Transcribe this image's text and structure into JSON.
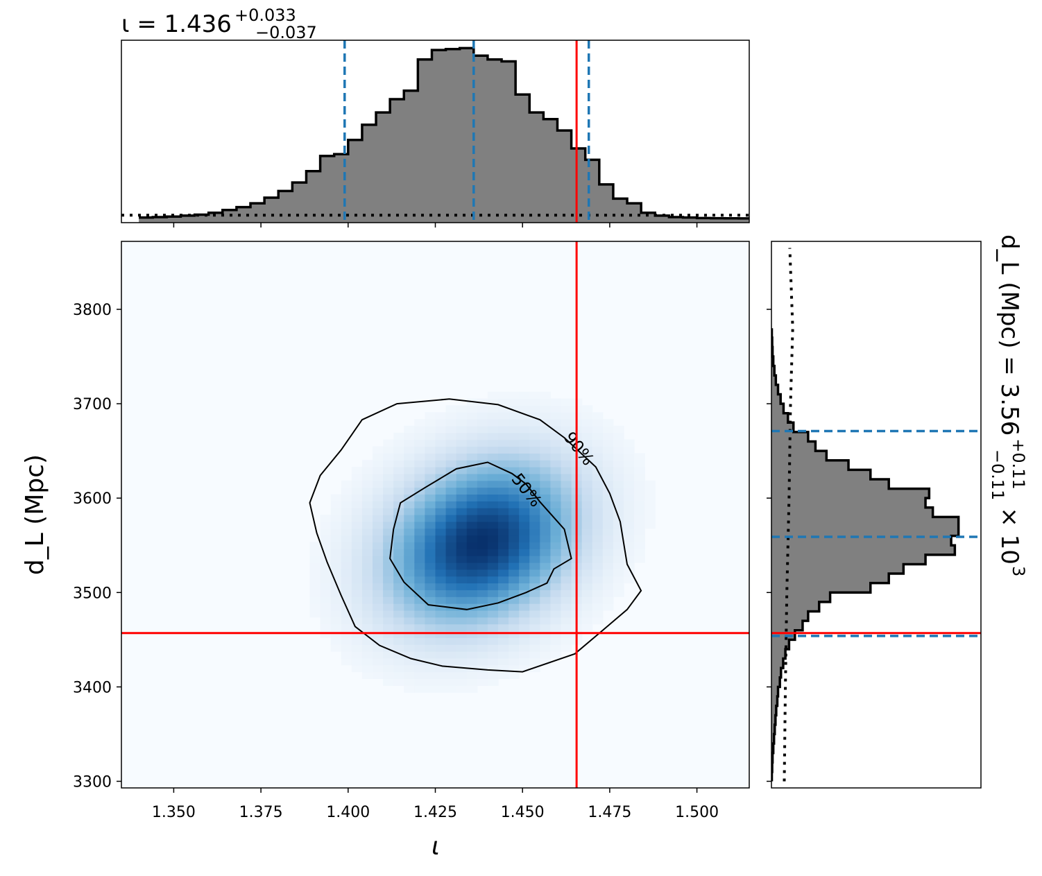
{
  "colors": {
    "truth": "#ff0000",
    "quantile": "#1f77b4",
    "hist_fill": "#808080",
    "hist_edge": "#000000",
    "density_low": "#f7fbff",
    "density_high": "#08306b"
  },
  "chart_data": [
    {
      "type": "histogram",
      "panel": "top-marginal",
      "title_main": "ι = 1.436",
      "title_plus": "+0.033",
      "title_minus": "−0.037",
      "xlim": [
        1.335,
        1.515
      ],
      "bin_start": 1.34,
      "bin_width": 0.004,
      "counts": [
        0.1,
        0.15,
        0.2,
        0.3,
        0.4,
        0.6,
        0.9,
        1.2,
        1.6,
        2.2,
        2.9,
        3.8,
        5.0,
        6.6,
        6.8,
        8.3,
        9.9,
        11.2,
        12.6,
        13.5,
        16.8,
        17.8,
        17.9,
        18.0,
        17.2,
        16.8,
        16.6,
        13.1,
        11.2,
        10.5,
        9.3,
        7.4,
        6.2,
        3.6,
        2.1,
        1.6,
        0.6,
        0.3,
        0.15,
        0.1,
        0.05,
        0.03,
        0.02,
        0.01
      ],
      "prior_level": 0.35,
      "median": 1.436,
      "lower": 1.399,
      "upper": 1.469,
      "truth": 1.4655
    },
    {
      "type": "heatmap",
      "panel": "joint",
      "xlabel": "ι",
      "ylabel": "d_L (Mpc)",
      "xlim": [
        1.335,
        1.515
      ],
      "ylim": [
        3293,
        3872
      ],
      "xticks": [
        "1.350",
        "1.375",
        "1.400",
        "1.425",
        "1.450",
        "1.475",
        "1.500"
      ],
      "xtick_values": [
        1.35,
        1.375,
        1.4,
        1.425,
        1.45,
        1.475,
        1.5
      ],
      "yticks": [
        "3300",
        "3400",
        "3500",
        "3600",
        "3700",
        "3800"
      ],
      "ytick_values": [
        3300,
        3400,
        3500,
        3600,
        3700,
        3800
      ],
      "peak": [
        1.438,
        3553
      ],
      "sigma": [
        0.017,
        55
      ],
      "truth": [
        1.4655,
        3457
      ],
      "contour_labels": [
        "50%",
        "90%"
      ],
      "contour_50": [
        [
          1.413,
          3567
        ],
        [
          1.415,
          3595
        ],
        [
          1.422,
          3611
        ],
        [
          1.431,
          3631
        ],
        [
          1.44,
          3638
        ],
        [
          1.447,
          3626
        ],
        [
          1.451,
          3615
        ],
        [
          1.455,
          3596
        ],
        [
          1.462,
          3567
        ],
        [
          1.464,
          3536
        ],
        [
          1.459,
          3525
        ],
        [
          1.457,
          3510
        ],
        [
          1.451,
          3500
        ],
        [
          1.443,
          3489
        ],
        [
          1.434,
          3482
        ],
        [
          1.423,
          3487
        ],
        [
          1.416,
          3511
        ],
        [
          1.412,
          3536
        ],
        [
          1.413,
          3567
        ]
      ],
      "contour_90": [
        [
          1.389,
          3595
        ],
        [
          1.392,
          3624
        ],
        [
          1.398,
          3651
        ],
        [
          1.404,
          3683
        ],
        [
          1.414,
          3700
        ],
        [
          1.429,
          3705
        ],
        [
          1.443,
          3699
        ],
        [
          1.455,
          3683
        ],
        [
          1.462,
          3664
        ],
        [
          1.471,
          3633
        ],
        [
          1.475,
          3605
        ],
        [
          1.478,
          3575
        ],
        [
          1.48,
          3530
        ],
        [
          1.484,
          3502
        ],
        [
          1.48,
          3482
        ],
        [
          1.473,
          3460
        ],
        [
          1.465,
          3435
        ],
        [
          1.45,
          3416
        ],
        [
          1.44,
          3418
        ],
        [
          1.427,
          3422
        ],
        [
          1.418,
          3430
        ],
        [
          1.409,
          3444
        ],
        [
          1.402,
          3464
        ],
        [
          1.398,
          3497
        ],
        [
          1.394,
          3532
        ],
        [
          1.391,
          3563
        ],
        [
          1.389,
          3595
        ]
      ]
    },
    {
      "type": "histogram",
      "panel": "right-marginal",
      "label": "d_L (Mpc) = 3.56",
      "label_plus": "+0.11",
      "label_minus": "−0.11",
      "label_factor": "× 10",
      "label_exp": "3",
      "ylim": [
        3293,
        3872
      ],
      "bin_start": 3300,
      "bin_width": 10,
      "counts": [
        0.01,
        0.02,
        0.03,
        0.05,
        0.07,
        0.09,
        0.11,
        0.13,
        0.16,
        0.18,
        0.23,
        0.26,
        0.32,
        0.38,
        0.48,
        0.64,
        0.85,
        1.0,
        1.3,
        1.6,
        2.7,
        3.2,
        3.6,
        4.2,
        5.0,
        4.9,
        5.1,
        5.1,
        4.4,
        4.2,
        4.3,
        3.2,
        2.7,
        2.1,
        1.5,
        1.2,
        1.0,
        0.6,
        0.45,
        0.33,
        0.25,
        0.18,
        0.12,
        0.08,
        0.05,
        0.03,
        0.02,
        0.01
      ],
      "prior_x": [
        [
          3300,
          0.35
        ],
        [
          3400,
          0.38
        ],
        [
          3500,
          0.42
        ],
        [
          3600,
          0.48
        ],
        [
          3700,
          0.52
        ],
        [
          3780,
          0.58
        ],
        [
          3865,
          0.5
        ]
      ],
      "median": 3559,
      "lower": 3454,
      "upper": 3671,
      "truth": 3457
    }
  ]
}
